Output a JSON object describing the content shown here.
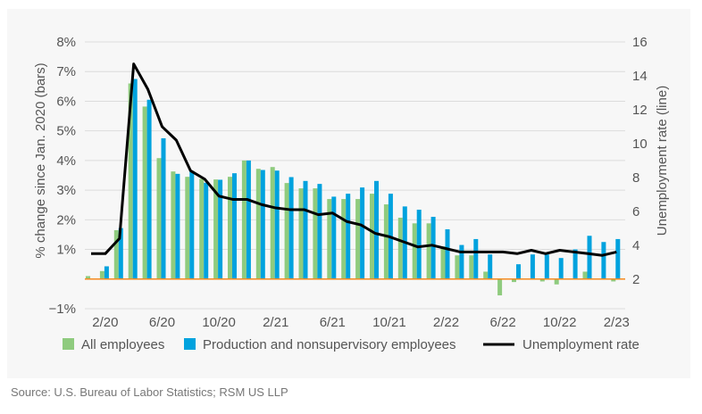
{
  "chart_data": {
    "type": "bar+line",
    "ylabel_left": "% change since Jan. 2020  (bars)",
    "ylabel_right": "Unemployment rate (line)",
    "ylim_left": [
      -1,
      8
    ],
    "ylim_right": [
      2,
      16
    ],
    "yticks_left": [
      "−1%",
      "1%",
      "2%",
      "3%",
      "4%",
      "5%",
      "6%",
      "7%",
      "8%"
    ],
    "yticks_left_values": [
      -1,
      1,
      2,
      3,
      4,
      5,
      6,
      7,
      8
    ],
    "yticks_right": [
      "2",
      "4",
      "6",
      "8",
      "10",
      "12",
      "14",
      "16"
    ],
    "xticks": [
      "2/20",
      "6/20",
      "10/20",
      "2/21",
      "6/21",
      "10/21",
      "2/22",
      "6/22",
      "10/22",
      "2/23"
    ],
    "x": [
      "1/20",
      "2/20",
      "3/20",
      "4/20",
      "5/20",
      "6/20",
      "7/20",
      "8/20",
      "9/20",
      "10/20",
      "11/20",
      "12/20",
      "1/21",
      "2/21",
      "3/21",
      "4/21",
      "5/21",
      "6/21",
      "7/21",
      "8/21",
      "9/21",
      "10/21",
      "11/21",
      "12/21",
      "1/22",
      "2/22",
      "3/22",
      "4/22",
      "5/22",
      "6/22",
      "7/22",
      "8/22",
      "9/22",
      "10/22",
      "11/22",
      "12/22",
      "1/23",
      "2/23"
    ],
    "grid": true,
    "legend_placement": "bottom",
    "colors": {
      "all": "#8fcb7e",
      "production": "#00a2de",
      "line": "#000000",
      "zero_line": "#f58a1f"
    },
    "series": [
      {
        "name": "All employees",
        "type": "bar",
        "axis": "left",
        "values": [
          0.1,
          0.27,
          1.65,
          6.6,
          5.82,
          4.08,
          3.63,
          3.45,
          3.38,
          3.36,
          3.45,
          4.0,
          3.72,
          3.78,
          3.24,
          3.06,
          3.06,
          2.7,
          2.7,
          2.7,
          2.88,
          2.52,
          2.07,
          1.88,
          1.88,
          1.1,
          0.8,
          0.8,
          0.25,
          -0.55,
          -0.1,
          0,
          -0.08,
          -0.18,
          0,
          0.25,
          0,
          -0.08
        ]
      },
      {
        "name": "Production and nonsupervisory employees",
        "type": "bar",
        "axis": "left",
        "values": [
          0,
          0.43,
          1.72,
          6.75,
          6.05,
          4.75,
          3.55,
          3.65,
          3.25,
          3.35,
          3.57,
          4.0,
          3.68,
          3.66,
          3.44,
          3.31,
          3.21,
          2.78,
          2.88,
          3.09,
          3.31,
          2.88,
          2.45,
          2.34,
          2.1,
          1.68,
          1.15,
          1.35,
          0.83,
          0,
          0.5,
          0.83,
          0.83,
          0.71,
          1.0,
          1.46,
          1.25,
          1.35
        ]
      },
      {
        "name": "Unemployment rate",
        "type": "line",
        "axis": "right",
        "values": [
          3.5,
          3.5,
          4.4,
          14.7,
          13.2,
          11.0,
          10.2,
          8.4,
          7.9,
          6.9,
          6.7,
          6.7,
          6.4,
          6.2,
          6.1,
          6.1,
          5.8,
          5.9,
          5.4,
          5.2,
          4.7,
          4.5,
          4.2,
          3.9,
          4.0,
          3.8,
          3.6,
          3.6,
          3.6,
          3.6,
          3.5,
          3.7,
          3.5,
          3.7,
          3.6,
          3.5,
          3.4,
          3.6
        ]
      }
    ]
  },
  "source": "Source: U.S. Bureau of Labor Statistics; RSM US LLP"
}
